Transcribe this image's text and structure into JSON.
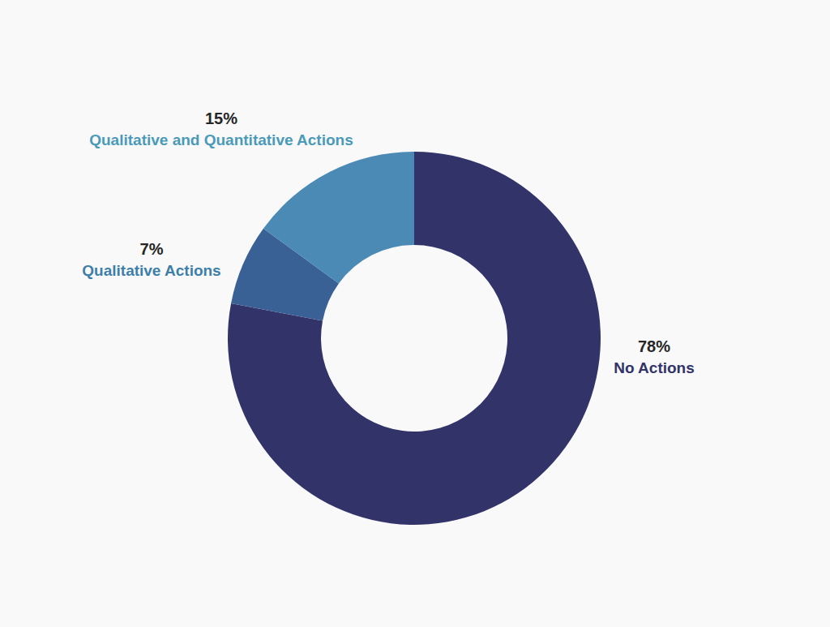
{
  "chart_data": {
    "type": "donut",
    "categories": [
      "No Actions",
      "Qualitative Actions",
      "Qualitative and Quantitative Actions"
    ],
    "values": [
      78,
      7,
      15
    ],
    "value_labels": [
      "78%",
      "7%",
      "15%"
    ],
    "colors": [
      "#323469",
      "#3a6196",
      "#4a8ab5"
    ],
    "data_labels": true
  }
}
